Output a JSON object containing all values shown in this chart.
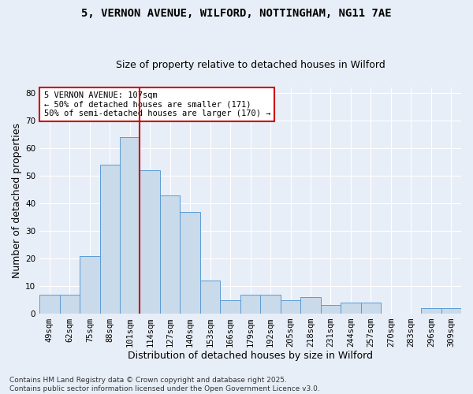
{
  "title_line1": "5, VERNON AVENUE, WILFORD, NOTTINGHAM, NG11 7AE",
  "title_line2": "Size of property relative to detached houses in Wilford",
  "xlabel": "Distribution of detached houses by size in Wilford",
  "ylabel": "Number of detached properties",
  "categories": [
    "49sqm",
    "62sqm",
    "75sqm",
    "88sqm",
    "101sqm",
    "114sqm",
    "127sqm",
    "140sqm",
    "153sqm",
    "166sqm",
    "179sqm",
    "192sqm",
    "205sqm",
    "218sqm",
    "231sqm",
    "244sqm",
    "257sqm",
    "270sqm",
    "283sqm",
    "296sqm",
    "309sqm"
  ],
  "values": [
    7,
    7,
    21,
    54,
    64,
    52,
    43,
    37,
    12,
    5,
    7,
    7,
    5,
    6,
    3,
    4,
    4,
    0,
    0,
    2,
    2
  ],
  "bar_color": "#c9daea",
  "bar_edge_color": "#5b9bd5",
  "red_line_x": 4.5,
  "red_line_color": "#cc0000",
  "annotation_text": "5 VERNON AVENUE: 107sqm\n← 50% of detached houses are smaller (171)\n50% of semi-detached houses are larger (170) →",
  "annotation_box_color": "#ffffff",
  "annotation_box_edge": "#cc0000",
  "ylim": [
    0,
    82
  ],
  "yticks": [
    0,
    10,
    20,
    30,
    40,
    50,
    60,
    70,
    80
  ],
  "footer_line1": "Contains HM Land Registry data © Crown copyright and database right 2025.",
  "footer_line2": "Contains public sector information licensed under the Open Government Licence v3.0.",
  "bg_color": "#e8eef7",
  "plot_bg_color": "#e8eef7",
  "grid_color": "#ffffff",
  "title_fontsize": 10,
  "subtitle_fontsize": 9,
  "axis_label_fontsize": 9,
  "tick_fontsize": 7.5,
  "annotation_fontsize": 7.5,
  "footer_fontsize": 6.5
}
